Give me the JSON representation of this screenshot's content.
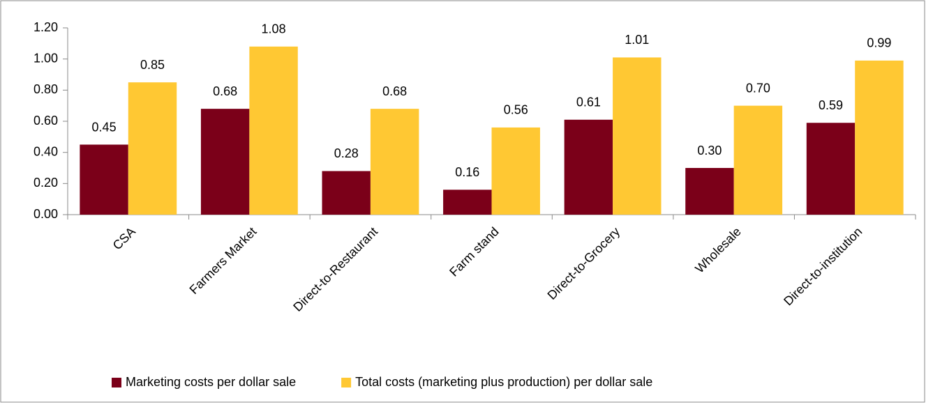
{
  "chart_data": {
    "type": "bar",
    "categories": [
      "CSA",
      "Farmers Market",
      "Direct-to-Restaurant",
      "Farm stand",
      "Direct-to-Grocery",
      "Wholesale",
      "Direct-to-institution"
    ],
    "series": [
      {
        "name": "Marketing costs per dollar sale",
        "color": "#7b0019",
        "values": [
          0.45,
          0.68,
          0.28,
          0.16,
          0.61,
          0.3,
          0.59
        ],
        "value_labels": [
          "0.45",
          "0.68",
          "0.28",
          "0.16",
          "0.61",
          "0.30",
          "0.59"
        ]
      },
      {
        "name": "Total costs (marketing plus production) per dollar sale",
        "color": "#ffc833",
        "values": [
          0.85,
          1.08,
          0.68,
          0.56,
          1.01,
          0.7,
          0.99
        ],
        "value_labels": [
          "0.85",
          "1.08",
          "0.68",
          "0.56",
          "1.01",
          "0.70",
          "0.99"
        ]
      }
    ],
    "ylim": [
      0,
      1.2
    ],
    "yticks": [
      {
        "value": 0,
        "label": "0.00"
      },
      {
        "value": 0.2,
        "label": "0.20"
      },
      {
        "value": 0.4,
        "label": "0.40"
      },
      {
        "value": 0.6,
        "label": "0.60"
      },
      {
        "value": 0.8,
        "label": "0.80"
      },
      {
        "value": 1.0,
        "label": "1.00"
      },
      {
        "value": 1.2,
        "label": "1.20"
      }
    ],
    "grid": false,
    "legend": "bottom"
  }
}
